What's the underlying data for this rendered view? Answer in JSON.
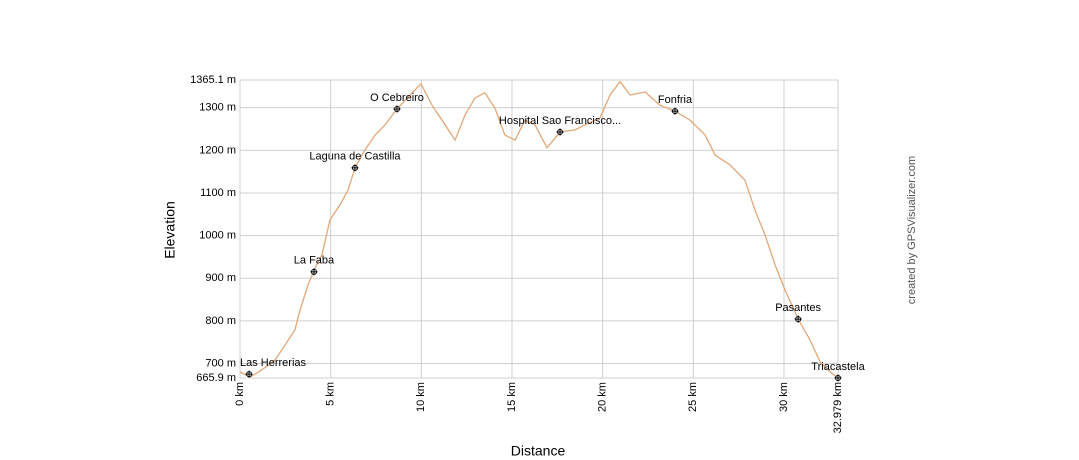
{
  "chart_data": {
    "type": "line",
    "y_label": "Elevation",
    "x_label": "Distance",
    "credit": "created by GPSVisualizer.com",
    "color": "#e0a878",
    "grid": true,
    "xlim": [
      0,
      32.979
    ],
    "ylim": [
      665.9,
      1365.1
    ],
    "xticks": [
      {
        "value": 0,
        "label": "0 km"
      },
      {
        "value": 5,
        "label": "5 km"
      },
      {
        "value": 10,
        "label": "10 km"
      },
      {
        "value": 15,
        "label": "15 km"
      },
      {
        "value": 20,
        "label": "20 km"
      },
      {
        "value": 25,
        "label": "25 km"
      },
      {
        "value": 30,
        "label": "30 km"
      },
      {
        "value": 32.979,
        "label": "32.979 km"
      }
    ],
    "yticks": [
      {
        "value": 665.9,
        "label": "665.9 m"
      },
      {
        "value": 700,
        "label": "700 m"
      },
      {
        "value": 800,
        "label": "800 m"
      },
      {
        "value": 900,
        "label": "900 m"
      },
      {
        "value": 1000,
        "label": "1000 m"
      },
      {
        "value": 1100,
        "label": "1100 m"
      },
      {
        "value": 1200,
        "label": "1200 m"
      },
      {
        "value": 1300,
        "label": "1300 m"
      },
      {
        "value": 1365.1,
        "label": "1365.1 m"
      }
    ],
    "x": [
      0,
      0.55,
      1.21,
      1.93,
      2.48,
      3.03,
      3.31,
      3.75,
      4.14,
      4.52,
      4.96,
      5.51,
      5.96,
      6.34,
      6.89,
      7.45,
      8.0,
      8.66,
      9.38,
      9.98,
      10.59,
      11.31,
      11.86,
      12.41,
      12.96,
      13.51,
      14.06,
      14.61,
      15.17,
      15.72,
      16.27,
      16.93,
      17.65,
      18.48,
      19.03,
      19.85,
      20.41,
      20.96,
      21.51,
      22.34,
      23.16,
      23.99,
      24.82,
      25.65,
      26.2,
      27.02,
      27.85,
      28.4,
      28.96,
      29.51,
      30.06,
      30.78,
      31.44,
      32.0,
      32.55,
      32.979
    ],
    "values": [
      680,
      668,
      685,
      708,
      743,
      779,
      825,
      884,
      924,
      955,
      1037,
      1072,
      1107,
      1159,
      1201,
      1236,
      1260,
      1297,
      1330,
      1356,
      1306,
      1260,
      1224,
      1283,
      1323,
      1335,
      1299,
      1236,
      1224,
      1271,
      1260,
      1206,
      1243,
      1248,
      1260,
      1276,
      1330,
      1361,
      1330,
      1337,
      1306,
      1292,
      1271,
      1236,
      1189,
      1166,
      1130,
      1060,
      1001,
      931,
      872,
      804,
      755,
      703,
      680,
      666
    ],
    "waypoints": [
      {
        "label": "Las Herrerias",
        "x": 0.5,
        "y": 675
      },
      {
        "label": "La Faba",
        "x": 4.08,
        "y": 915
      },
      {
        "label": "Laguna de Castilla",
        "x": 6.34,
        "y": 1159
      },
      {
        "label": "O Cebreiro",
        "x": 8.66,
        "y": 1297
      },
      {
        "label": "Hospital Sao Francisco...",
        "x": 17.65,
        "y": 1243
      },
      {
        "label": "Fonfria",
        "x": 23.99,
        "y": 1292
      },
      {
        "label": "Pasantes",
        "x": 30.78,
        "y": 804
      },
      {
        "label": "Triacastela",
        "x": 32.979,
        "y": 666
      }
    ]
  }
}
